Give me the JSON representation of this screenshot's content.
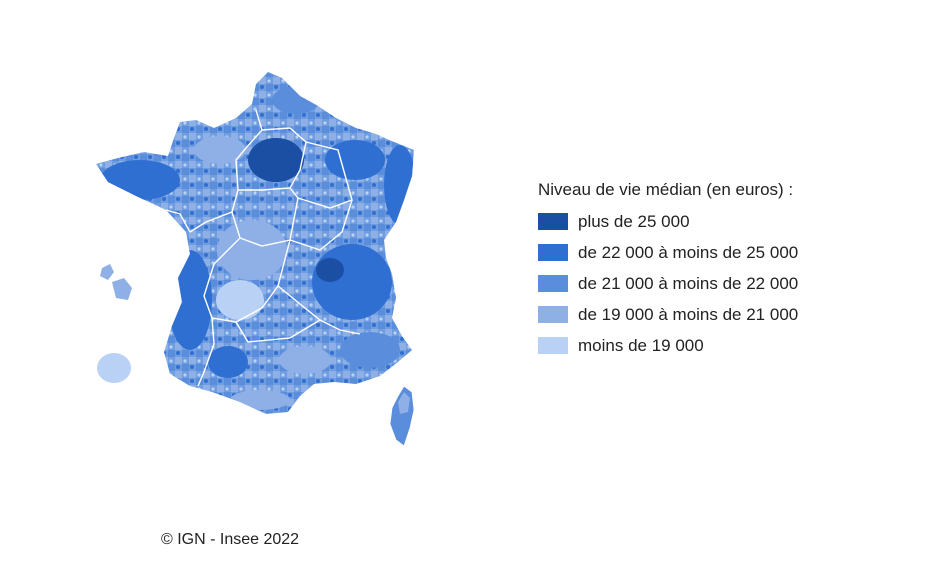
{
  "legend": {
    "title": "Niveau de vie médian (en euros) :",
    "items": [
      {
        "label": "plus de 25 000",
        "color": "#1b4fa3"
      },
      {
        "label": "de 22 000 à moins de 25 000",
        "color": "#2f6fd2"
      },
      {
        "label": "de 21 000 à moins de 22 000",
        "color": "#5a8ddb"
      },
      {
        "label": "de 19 000 à moins de 21 000",
        "color": "#8eb0e6"
      },
      {
        "label": "moins de 19 000",
        "color": "#b9d1f5"
      }
    ]
  },
  "credit": "© IGN - Insee 2022",
  "map": {
    "border_color": "#ffffff",
    "background_fill": "#6f9de0"
  }
}
